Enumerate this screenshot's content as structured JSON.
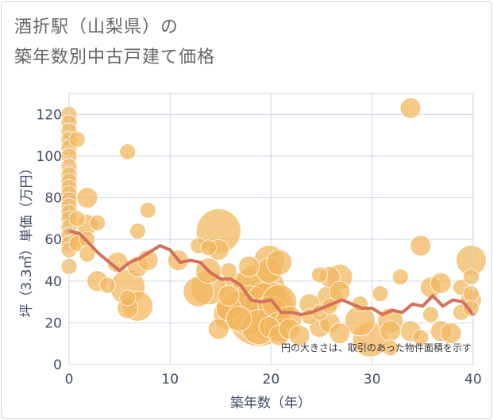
{
  "title_line1": "酒折駅（山梨県）の",
  "title_line2": "築年数別中古戸建て価格",
  "chart_data": {
    "type": "scatter",
    "title": "酒折駅（山梨県）の築年数別中古戸建て価格",
    "xlabel": "築年数（年）",
    "ylabel": "坪（3.3㎡）単価（万円）",
    "xlim": [
      0,
      40
    ],
    "ylim": [
      0,
      130
    ],
    "xticks": [
      0,
      10,
      20,
      30,
      40
    ],
    "yticks": [
      0,
      20,
      40,
      60,
      80,
      100,
      120
    ],
    "grid": true,
    "annotation": "円の大きさは、取引のあった物件面積を示す",
    "colors": {
      "bubble": "#f2b75e",
      "line": "#d4705c",
      "grid": "#c9d6e6",
      "background": "#ffffff"
    },
    "scatter": [
      {
        "x": 0,
        "y": 120,
        "s": 2
      },
      {
        "x": 0,
        "y": 116,
        "s": 2
      },
      {
        "x": 0,
        "y": 112,
        "s": 2
      },
      {
        "x": 0,
        "y": 108,
        "s": 2
      },
      {
        "x": 0,
        "y": 104,
        "s": 2
      },
      {
        "x": 0,
        "y": 100,
        "s": 2
      },
      {
        "x": 0,
        "y": 95,
        "s": 2
      },
      {
        "x": 0,
        "y": 91,
        "s": 2
      },
      {
        "x": 0,
        "y": 88,
        "s": 2
      },
      {
        "x": 0,
        "y": 85,
        "s": 2
      },
      {
        "x": 0,
        "y": 82,
        "s": 2
      },
      {
        "x": 0,
        "y": 79,
        "s": 2
      },
      {
        "x": 0,
        "y": 76,
        "s": 2
      },
      {
        "x": 0,
        "y": 73,
        "s": 2
      },
      {
        "x": 0,
        "y": 70,
        "s": 2
      },
      {
        "x": 0,
        "y": 66,
        "s": 2
      },
      {
        "x": 0,
        "y": 62,
        "s": 2
      },
      {
        "x": 0,
        "y": 58,
        "s": 2
      },
      {
        "x": 0,
        "y": 55,
        "s": 2
      },
      {
        "x": 0,
        "y": 47,
        "s": 2
      },
      {
        "x": 0.8,
        "y": 108,
        "s": 2
      },
      {
        "x": 0.8,
        "y": 70,
        "s": 2
      },
      {
        "x": 0.8,
        "y": 60,
        "s": 2
      },
      {
        "x": 0.8,
        "y": 58,
        "s": 2
      },
      {
        "x": 1.8,
        "y": 80,
        "s": 3
      },
      {
        "x": 1.8,
        "y": 67,
        "s": 3
      },
      {
        "x": 1.8,
        "y": 60,
        "s": 2
      },
      {
        "x": 1.8,
        "y": 53,
        "s": 2
      },
      {
        "x": 2.8,
        "y": 68,
        "s": 2
      },
      {
        "x": 2.8,
        "y": 40,
        "s": 3
      },
      {
        "x": 3.8,
        "y": 38,
        "s": 2
      },
      {
        "x": 4.8,
        "y": 49,
        "s": 3
      },
      {
        "x": 5.8,
        "y": 102,
        "s": 2
      },
      {
        "x": 5.8,
        "y": 37,
        "s": 6
      },
      {
        "x": 5.8,
        "y": 32,
        "s": 2
      },
      {
        "x": 5.8,
        "y": 27,
        "s": 3
      },
      {
        "x": 6.8,
        "y": 64,
        "s": 2
      },
      {
        "x": 6.8,
        "y": 47,
        "s": 3
      },
      {
        "x": 6.8,
        "y": 28,
        "s": 5
      },
      {
        "x": 7.8,
        "y": 74,
        "s": 2
      },
      {
        "x": 7.8,
        "y": 50,
        "s": 3
      },
      {
        "x": 10.8,
        "y": 50,
        "s": 3
      },
      {
        "x": 12.8,
        "y": 35,
        "s": 5
      },
      {
        "x": 12.8,
        "y": 57,
        "s": 2
      },
      {
        "x": 13.8,
        "y": 56,
        "s": 2
      },
      {
        "x": 13.8,
        "y": 45,
        "s": 4
      },
      {
        "x": 13.8,
        "y": 37,
        "s": 6
      },
      {
        "x": 14.8,
        "y": 55,
        "s": 3
      },
      {
        "x": 14.8,
        "y": 64,
        "s": 8
      },
      {
        "x": 14.8,
        "y": 17,
        "s": 3
      },
      {
        "x": 15.8,
        "y": 45,
        "s": 2
      },
      {
        "x": 15.8,
        "y": 33,
        "s": 3
      },
      {
        "x": 15.8,
        "y": 27,
        "s": 4
      },
      {
        "x": 15.8,
        "y": 24,
        "s": 5
      },
      {
        "x": 16.8,
        "y": 26,
        "s": 7
      },
      {
        "x": 16.8,
        "y": 22,
        "s": 4
      },
      {
        "x": 17.8,
        "y": 47,
        "s": 3
      },
      {
        "x": 17.8,
        "y": 30,
        "s": 12
      },
      {
        "x": 17.8,
        "y": 26,
        "s": 9
      },
      {
        "x": 18.8,
        "y": 35,
        "s": 10
      },
      {
        "x": 18.8,
        "y": 24,
        "s": 12
      },
      {
        "x": 18.8,
        "y": 18,
        "s": 6
      },
      {
        "x": 19.8,
        "y": 50,
        "s": 5
      },
      {
        "x": 19.8,
        "y": 45,
        "s": 4
      },
      {
        "x": 19.8,
        "y": 28,
        "s": 9
      },
      {
        "x": 19.8,
        "y": 22,
        "s": 8
      },
      {
        "x": 19.8,
        "y": 18,
        "s": 3
      },
      {
        "x": 20.8,
        "y": 49,
        "s": 4
      },
      {
        "x": 20.8,
        "y": 30,
        "s": 6
      },
      {
        "x": 20.8,
        "y": 18,
        "s": 5
      },
      {
        "x": 20.8,
        "y": 14,
        "s": 3
      },
      {
        "x": 21.8,
        "y": 22,
        "s": 4
      },
      {
        "x": 21.8,
        "y": 17,
        "s": 3
      },
      {
        "x": 22.8,
        "y": 14,
        "s": 3
      },
      {
        "x": 23.8,
        "y": 29,
        "s": 3
      },
      {
        "x": 23.8,
        "y": 23,
        "s": 2
      },
      {
        "x": 24.8,
        "y": 18,
        "s": 3
      },
      {
        "x": 24.8,
        "y": 25,
        "s": 2
      },
      {
        "x": 24.8,
        "y": 43,
        "s": 2
      },
      {
        "x": 25.8,
        "y": 42,
        "s": 3
      },
      {
        "x": 25.8,
        "y": 32,
        "s": 4
      },
      {
        "x": 25.8,
        "y": 20,
        "s": 3
      },
      {
        "x": 25.8,
        "y": 28,
        "s": 2
      },
      {
        "x": 26.8,
        "y": 42,
        "s": 4
      },
      {
        "x": 26.8,
        "y": 35,
        "s": 3
      },
      {
        "x": 26.8,
        "y": 15,
        "s": 3
      },
      {
        "x": 28.8,
        "y": 21,
        "s": 5
      },
      {
        "x": 28.8,
        "y": 29,
        "s": 2
      },
      {
        "x": 29.8,
        "y": 12,
        "s": 6
      },
      {
        "x": 30.8,
        "y": 34,
        "s": 2
      },
      {
        "x": 31.8,
        "y": 21,
        "s": 4
      },
      {
        "x": 31.8,
        "y": 16,
        "s": 3
      },
      {
        "x": 31.8,
        "y": 8,
        "s": 2
      },
      {
        "x": 32.8,
        "y": 42,
        "s": 2
      },
      {
        "x": 33.8,
        "y": 123,
        "s": 3
      },
      {
        "x": 33.8,
        "y": 16,
        "s": 3
      },
      {
        "x": 34.8,
        "y": 57,
        "s": 3
      },
      {
        "x": 34.8,
        "y": 13,
        "s": 2
      },
      {
        "x": 35.8,
        "y": 37,
        "s": 3
      },
      {
        "x": 35.8,
        "y": 24,
        "s": 2
      },
      {
        "x": 36.8,
        "y": 39,
        "s": 3
      },
      {
        "x": 36.8,
        "y": 16,
        "s": 3
      },
      {
        "x": 37.8,
        "y": 15,
        "s": 3
      },
      {
        "x": 38.8,
        "y": 37,
        "s": 2
      },
      {
        "x": 38.8,
        "y": 25,
        "s": 2
      },
      {
        "x": 39.8,
        "y": 50,
        "s": 5
      },
      {
        "x": 39.8,
        "y": 42,
        "s": 2
      },
      {
        "x": 39.8,
        "y": 34,
        "s": 2
      },
      {
        "x": 39.8,
        "y": 31,
        "s": 3
      },
      {
        "x": 39.8,
        "y": 27,
        "s": 2
      }
    ],
    "line": {
      "x": [
        0,
        1,
        2,
        3,
        4,
        5,
        6,
        7,
        8,
        9,
        10,
        11,
        12,
        13,
        14,
        15,
        16,
        17,
        18,
        19,
        20,
        21,
        22,
        23,
        24,
        25,
        26,
        27,
        28,
        29,
        30,
        31,
        32,
        33,
        34,
        35,
        36,
        37,
        38,
        39,
        40
      ],
      "y": [
        64,
        63,
        58,
        53,
        49,
        45,
        49,
        51,
        54,
        57,
        55,
        49,
        50,
        49,
        44,
        41,
        41,
        38,
        31,
        30,
        31,
        25,
        25,
        24,
        25,
        27,
        29,
        31,
        29,
        27,
        27,
        24,
        26,
        25,
        29,
        28,
        33,
        28,
        31,
        30,
        24
      ]
    }
  }
}
